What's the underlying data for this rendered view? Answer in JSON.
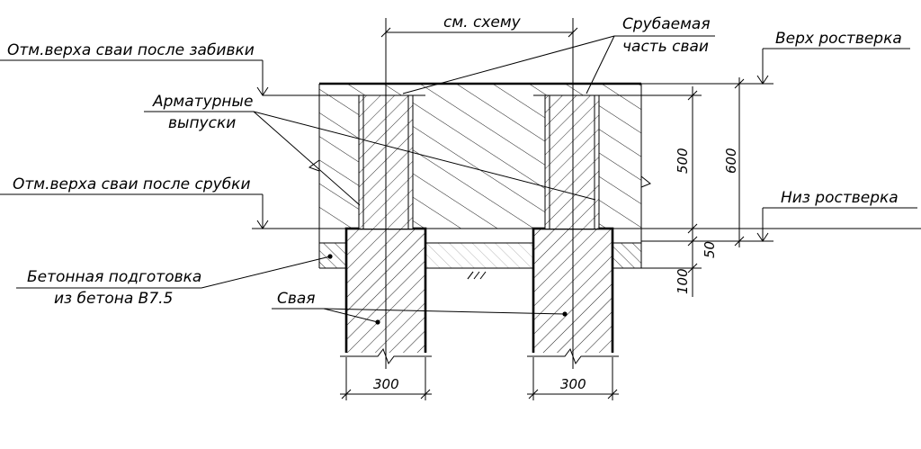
{
  "labels": {
    "see_scheme": "см. схему",
    "cut_part_line1": "Срубаемая",
    "cut_part_line2": "часть сваи",
    "pile_top_after_driving": "Отм.верха сваи после забивки",
    "grillage_top": "Верх ростверка",
    "rebar_line1": "Арматурные",
    "rebar_line2": "выпуски",
    "pile_top_after_cutting": "Отм.верха сваи после срубки",
    "grillage_bottom": "Низ ростверка",
    "prep_line1": "Бетонная подготовка",
    "prep_line2": "из бетона B7.5",
    "pile": "Свая"
  },
  "dimensions": {
    "d_500": "500",
    "d_600": "600",
    "d_50": "50",
    "d_100": "100",
    "pile_width_left": "300",
    "pile_width_right": "300"
  }
}
